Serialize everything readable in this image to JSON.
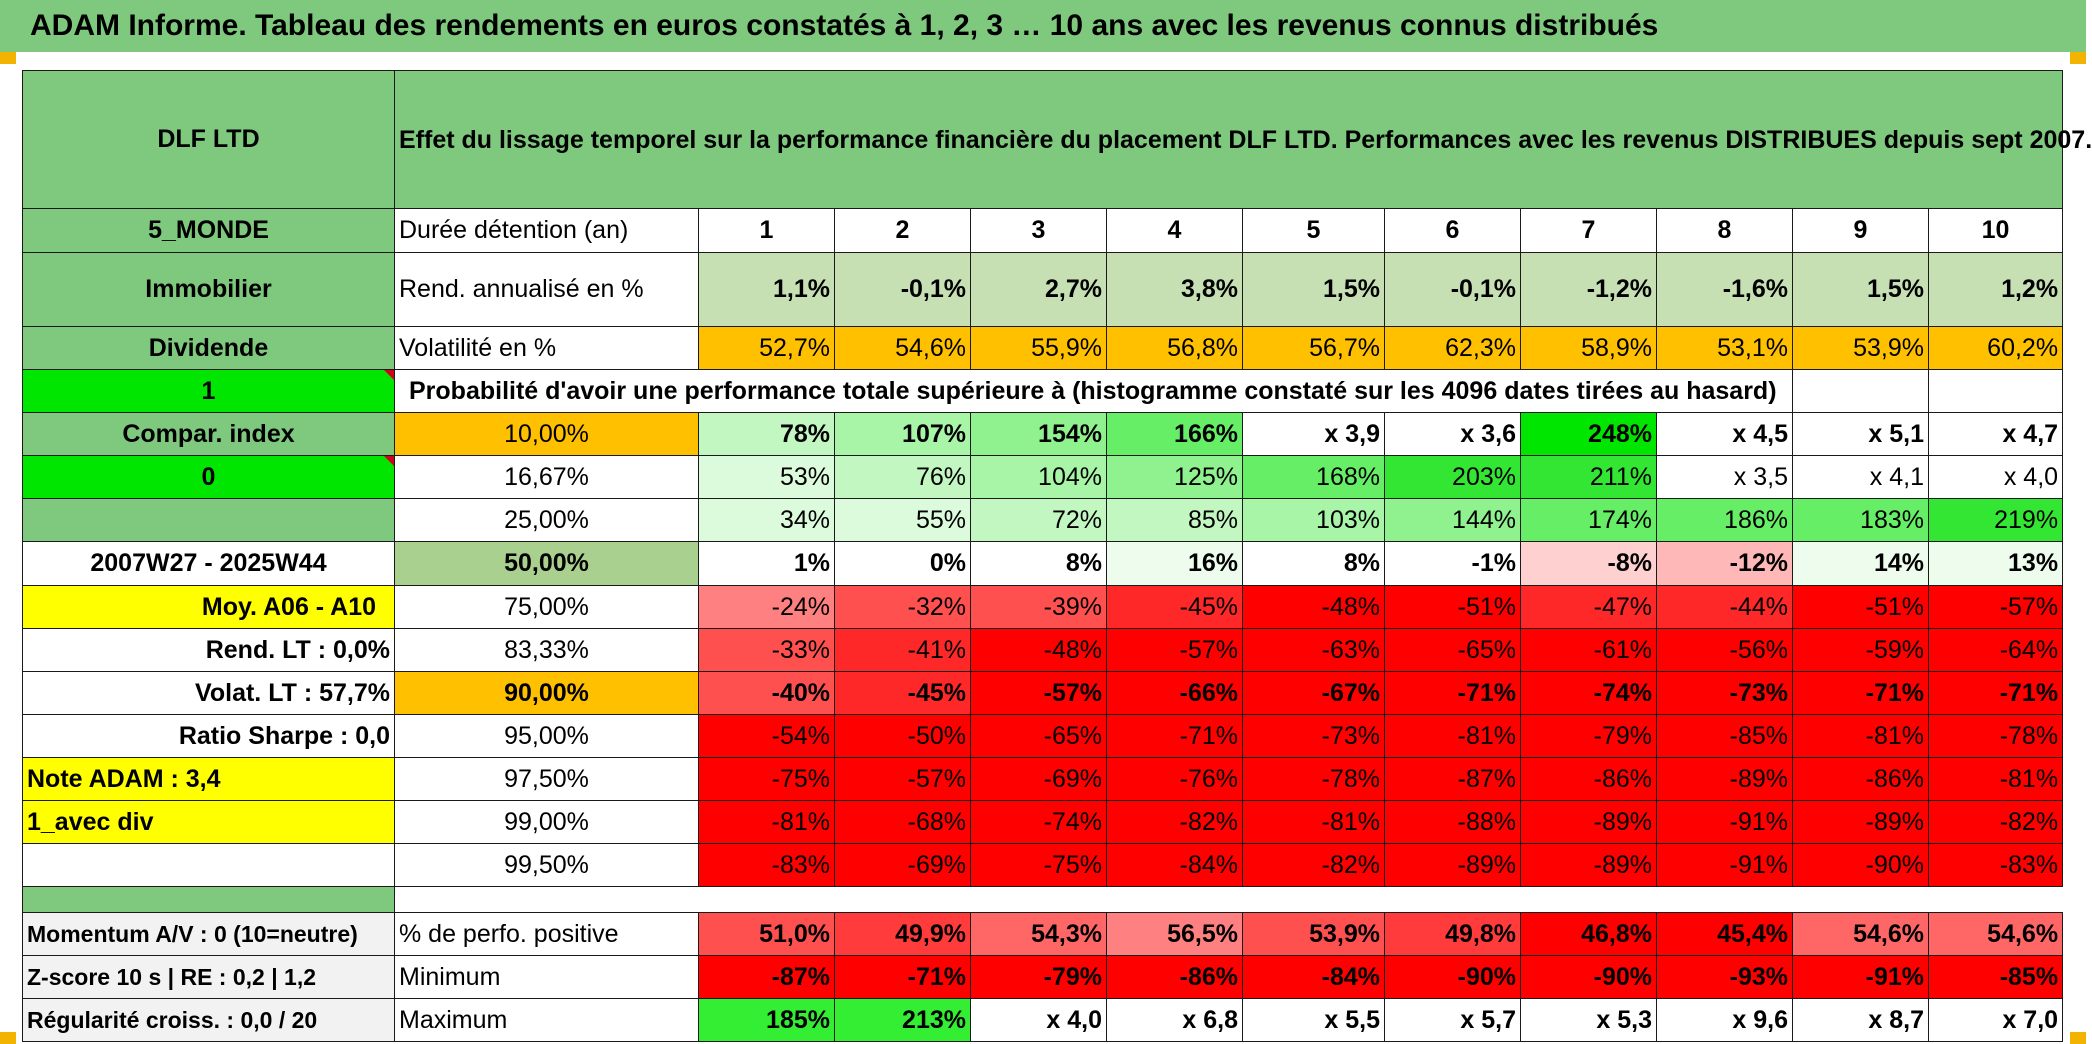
{
  "page_title": "ADAM Informe. Tableau des rendements en euros constatés à 1, 2, 3 … 10 ans avec les revenus connus distribués",
  "fund_name": "DLF LTD",
  "description": "Effet du lissage temporel sur la performance financière du placement DLF LTD. Performances avec les revenus DISTRIBUES depuis sept 2007.",
  "left_labels": {
    "zone": "5_MONDE",
    "category": "Immobilier",
    "dividend": "Dividende",
    "val_1": "1",
    "compar_index": "Compar. index",
    "val_0": "0",
    "period": "2007W27 - 2025W44",
    "moy": "Moy. A06 - A10",
    "rend_lt": "Rend. LT :   0,0%",
    "volat_lt": "Volat. LT :   57,7%",
    "ratio_sharpe": "Ratio Sharpe :    0,0",
    "note_adam": "Note ADAM : 3,4",
    "avec_div": "1_avec div"
  },
  "header": {
    "duree_label": "Durée détention (an)",
    "years": [
      "1",
      "2",
      "3",
      "4",
      "5",
      "6",
      "7",
      "8",
      "9",
      "10"
    ]
  },
  "rend": {
    "label": "Rend. annualisé en %",
    "values": [
      "1,1%",
      "-0,1%",
      "2,7%",
      "3,8%",
      "1,5%",
      "-0,1%",
      "-1,2%",
      "-1,6%",
      "1,5%",
      "1,2%"
    ]
  },
  "volat": {
    "label": "Volatilité en %",
    "values": [
      "52,7%",
      "54,6%",
      "55,9%",
      "56,8%",
      "56,7%",
      "62,3%",
      "58,9%",
      "53,1%",
      "53,9%",
      "60,2%"
    ]
  },
  "probability_caption": "Probabilité d'avoir une performance totale supérieure à (histogramme constaté sur les 4096 dates tirées au hasard)",
  "quantiles": [
    {
      "q": "10,00%",
      "values": [
        "78%",
        "107%",
        "154%",
        "166%",
        "x 3,9",
        "x 3,6",
        "248%",
        "x 4,5",
        "x 5,1",
        "x 4,7"
      ]
    },
    {
      "q": "16,67%",
      "values": [
        "53%",
        "76%",
        "104%",
        "125%",
        "168%",
        "203%",
        "211%",
        "x 3,5",
        "x 4,1",
        "x 4,0"
      ]
    },
    {
      "q": "25,00%",
      "values": [
        "34%",
        "55%",
        "72%",
        "85%",
        "103%",
        "144%",
        "174%",
        "186%",
        "183%",
        "219%"
      ]
    },
    {
      "q": "50,00%",
      "values": [
        "1%",
        "0%",
        "8%",
        "16%",
        "8%",
        "-1%",
        "-8%",
        "-12%",
        "14%",
        "13%"
      ]
    },
    {
      "q": "75,00%",
      "values": [
        "-24%",
        "-32%",
        "-39%",
        "-45%",
        "-48%",
        "-51%",
        "-47%",
        "-44%",
        "-51%",
        "-57%"
      ]
    },
    {
      "q": "83,33%",
      "values": [
        "-33%",
        "-41%",
        "-48%",
        "-57%",
        "-63%",
        "-65%",
        "-61%",
        "-56%",
        "-59%",
        "-64%"
      ]
    },
    {
      "q": "90,00%",
      "values": [
        "-40%",
        "-45%",
        "-57%",
        "-66%",
        "-67%",
        "-71%",
        "-74%",
        "-73%",
        "-71%",
        "-71%"
      ]
    },
    {
      "q": "95,00%",
      "values": [
        "-54%",
        "-50%",
        "-65%",
        "-71%",
        "-73%",
        "-81%",
        "-79%",
        "-85%",
        "-81%",
        "-78%"
      ]
    },
    {
      "q": "97,50%",
      "values": [
        "-75%",
        "-57%",
        "-69%",
        "-76%",
        "-78%",
        "-87%",
        "-86%",
        "-89%",
        "-86%",
        "-81%"
      ]
    },
    {
      "q": "99,00%",
      "values": [
        "-81%",
        "-68%",
        "-74%",
        "-82%",
        "-81%",
        "-88%",
        "-89%",
        "-91%",
        "-89%",
        "-82%"
      ]
    },
    {
      "q": "99,50%",
      "values": [
        "-83%",
        "-69%",
        "-75%",
        "-84%",
        "-82%",
        "-89%",
        "-89%",
        "-91%",
        "-90%",
        "-83%"
      ]
    }
  ],
  "bottom": {
    "momentum": "Momentum A/V : 0 (10=neutre)",
    "zscore": "Z-score 10 s | RE : 0,2 | 1,2",
    "regularite": "Régularité croiss. : 0,0 / 20",
    "pos_label": "% de perfo. positive",
    "pos_values": [
      "51,0%",
      "49,9%",
      "54,3%",
      "56,5%",
      "53,9%",
      "49,8%",
      "46,8%",
      "45,4%",
      "54,6%",
      "54,6%"
    ],
    "min_label": "Minimum",
    "min_values": [
      "-87%",
      "-71%",
      "-79%",
      "-86%",
      "-84%",
      "-90%",
      "-90%",
      "-93%",
      "-91%",
      "-85%"
    ],
    "max_label": "Maximum",
    "max_values": [
      "185%",
      "213%",
      "x 4,0",
      "x 6,8",
      "x 5,5",
      "x 5,7",
      "x 5,3",
      "x 9,6",
      "x 8,7",
      "x 7,0"
    ]
  },
  "colors": {
    "header_green": "#7ec97e",
    "bright_green": "#00e600",
    "yellow": "#ffff00",
    "orange": "#ffc000",
    "red": "#ff0000"
  }
}
